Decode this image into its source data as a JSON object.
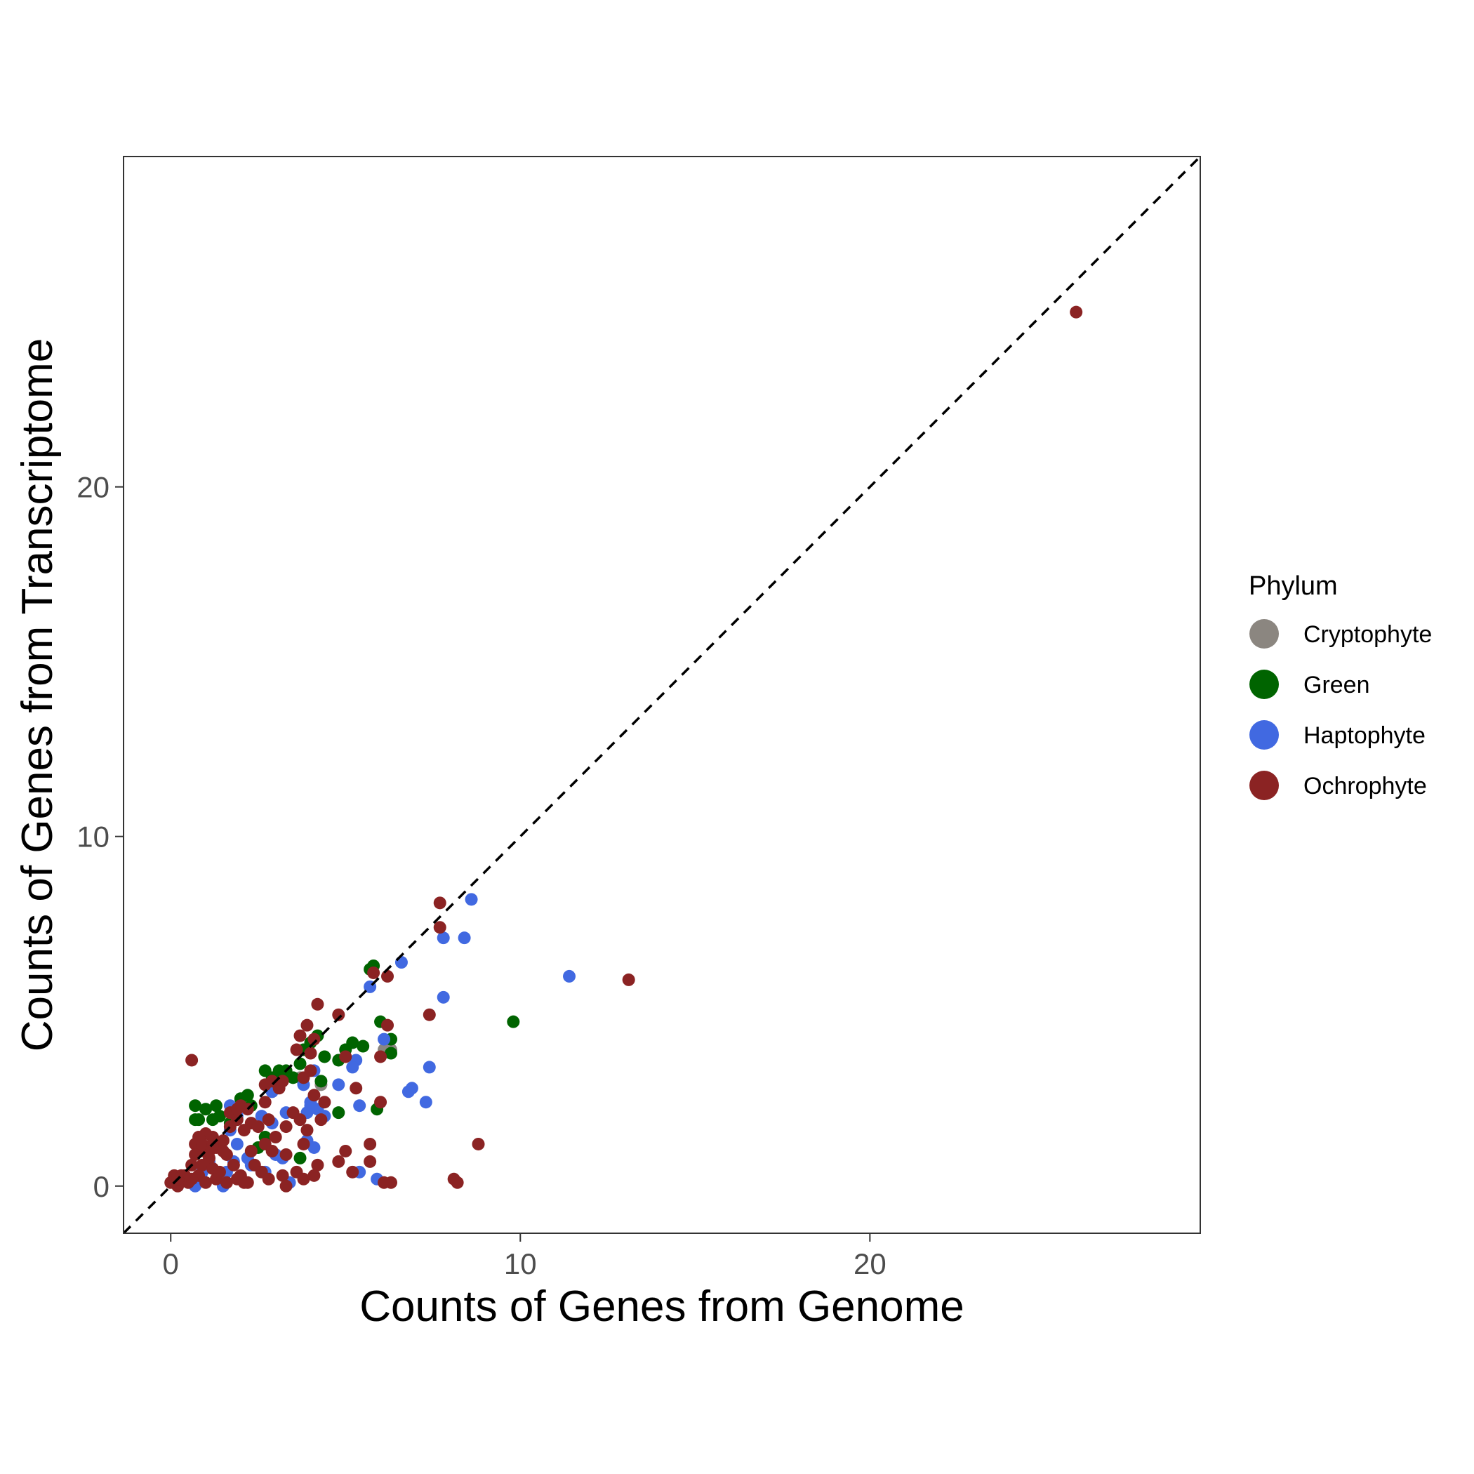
{
  "chart_data": {
    "type": "scatter",
    "title": "",
    "xlabel": "Counts of Genes from Genome",
    "ylabel": "Counts of Genes from Transcriptome",
    "xlim": [
      -1.35,
      29.45
    ],
    "ylim": [
      -1.35,
      29.45
    ],
    "xticks": [
      0,
      10,
      20
    ],
    "yticks": [
      0,
      10,
      20
    ],
    "grid": false,
    "reference_line": {
      "type": "identity",
      "style": "dashed",
      "color": "#000000"
    },
    "legend": {
      "title": "Phylum",
      "position": "right",
      "entries": [
        "Cryptophyte",
        "Green",
        "Haptophyte",
        "Ochrophyte"
      ]
    },
    "colors": {
      "Cryptophyte": "#8b8680",
      "Green": "#006400",
      "Haptophyte": "#4169e1",
      "Ochrophyte": "#8b2323"
    },
    "series": [
      {
        "name": "Cryptophyte",
        "points": [
          [
            3.7,
            3.1
          ],
          [
            4.3,
            2.9
          ],
          [
            6.1,
            3.9
          ],
          [
            6.3,
            3.9
          ],
          [
            2.9,
            2.7
          ]
        ]
      },
      {
        "name": "Green",
        "points": [
          [
            5.8,
            6.3
          ],
          [
            5.7,
            6.2
          ],
          [
            6.0,
            4.7
          ],
          [
            6.3,
            4.2
          ],
          [
            6.3,
            3.8
          ],
          [
            5.2,
            4.1
          ],
          [
            5.5,
            4.0
          ],
          [
            5.0,
            3.9
          ],
          [
            4.2,
            4.3
          ],
          [
            4.0,
            4.1
          ],
          [
            3.8,
            3.9
          ],
          [
            4.4,
            3.7
          ],
          [
            4.8,
            3.6
          ],
          [
            3.7,
            3.5
          ],
          [
            3.1,
            3.3
          ],
          [
            3.3,
            3.3
          ],
          [
            2.7,
            3.3
          ],
          [
            2.9,
            3.1
          ],
          [
            4.3,
            3.0
          ],
          [
            4.8,
            2.1
          ],
          [
            5.9,
            2.2
          ],
          [
            2.2,
            2.6
          ],
          [
            2.0,
            2.5
          ],
          [
            2.3,
            2.3
          ],
          [
            1.3,
            2.3
          ],
          [
            0.7,
            2.3
          ],
          [
            0.7,
            1.9
          ],
          [
            0.8,
            1.9
          ],
          [
            1.4,
            2.0
          ],
          [
            1.0,
            2.2
          ],
          [
            2.7,
            1.4
          ],
          [
            2.5,
            1.1
          ],
          [
            3.7,
            0.8
          ],
          [
            9.8,
            4.7
          ],
          [
            1.7,
            1.8
          ],
          [
            1.2,
            1.9
          ],
          [
            3.5,
            3.1
          ]
        ]
      },
      {
        "name": "Haptophyte",
        "points": [
          [
            8.6,
            8.2
          ],
          [
            7.8,
            7.1
          ],
          [
            8.4,
            7.1
          ],
          [
            6.6,
            6.4
          ],
          [
            5.7,
            5.7
          ],
          [
            11.4,
            6.0
          ],
          [
            7.8,
            5.4
          ],
          [
            6.1,
            4.2
          ],
          [
            5.3,
            3.6
          ],
          [
            5.2,
            3.4
          ],
          [
            7.4,
            3.4
          ],
          [
            4.8,
            2.9
          ],
          [
            6.8,
            2.7
          ],
          [
            6.9,
            2.8
          ],
          [
            7.3,
            2.4
          ],
          [
            5.4,
            2.3
          ],
          [
            4.0,
            2.3
          ],
          [
            4.2,
            2.2
          ],
          [
            3.9,
            2.1
          ],
          [
            4.4,
            2.0
          ],
          [
            3.8,
            2.9
          ],
          [
            4.1,
            3.3
          ],
          [
            3.3,
            2.1
          ],
          [
            2.9,
            2.7
          ],
          [
            2.6,
            2.0
          ],
          [
            2.9,
            1.8
          ],
          [
            1.7,
            2.3
          ],
          [
            1.9,
            2.0
          ],
          [
            3.9,
            1.3
          ],
          [
            4.1,
            1.1
          ],
          [
            3.2,
            0.8
          ],
          [
            3.0,
            0.9
          ],
          [
            2.7,
            0.4
          ],
          [
            2.2,
            0.8
          ],
          [
            2.3,
            0.6
          ],
          [
            1.8,
            0.7
          ],
          [
            1.6,
            0.4
          ],
          [
            1.4,
            0.2
          ],
          [
            1.5,
            0.0
          ],
          [
            0.9,
            0.4
          ],
          [
            0.6,
            0.1
          ],
          [
            0.7,
            0.0
          ],
          [
            1.9,
            1.2
          ],
          [
            1.7,
            1.6
          ],
          [
            5.4,
            0.4
          ],
          [
            5.9,
            0.2
          ],
          [
            3.4,
            0.1
          ],
          [
            4.0,
            2.4
          ],
          [
            1.1,
            0.7
          ]
        ]
      },
      {
        "name": "Ochrophyte",
        "points": [
          [
            25.9,
            25.0
          ],
          [
            7.7,
            8.1
          ],
          [
            7.7,
            7.4
          ],
          [
            6.2,
            6.0
          ],
          [
            5.8,
            6.1
          ],
          [
            13.1,
            5.9
          ],
          [
            4.2,
            5.2
          ],
          [
            4.8,
            4.9
          ],
          [
            7.4,
            4.9
          ],
          [
            6.2,
            4.6
          ],
          [
            3.9,
            4.6
          ],
          [
            3.7,
            4.3
          ],
          [
            4.1,
            4.2
          ],
          [
            3.6,
            3.9
          ],
          [
            4.0,
            3.8
          ],
          [
            5.0,
            3.7
          ],
          [
            6.0,
            3.7
          ],
          [
            0.6,
            3.6
          ],
          [
            3.8,
            3.1
          ],
          [
            4.0,
            3.3
          ],
          [
            3.2,
            3.0
          ],
          [
            2.9,
            3.0
          ],
          [
            2.7,
            2.9
          ],
          [
            3.1,
            2.8
          ],
          [
            5.3,
            2.8
          ],
          [
            4.4,
            2.4
          ],
          [
            6.0,
            2.4
          ],
          [
            2.7,
            2.4
          ],
          [
            2.0,
            2.3
          ],
          [
            2.2,
            2.2
          ],
          [
            1.7,
            2.1
          ],
          [
            1.9,
            1.9
          ],
          [
            2.3,
            1.8
          ],
          [
            2.1,
            1.6
          ],
          [
            2.5,
            1.7
          ],
          [
            2.8,
            1.9
          ],
          [
            3.3,
            1.7
          ],
          [
            3.5,
            2.1
          ],
          [
            3.7,
            1.9
          ],
          [
            4.3,
            1.9
          ],
          [
            3.9,
            1.6
          ],
          [
            4.1,
            2.6
          ],
          [
            3.0,
            1.4
          ],
          [
            2.7,
            1.2
          ],
          [
            2.9,
            1.0
          ],
          [
            3.3,
            0.9
          ],
          [
            3.8,
            1.2
          ],
          [
            4.2,
            0.6
          ],
          [
            5.0,
            1.0
          ],
          [
            5.7,
            1.2
          ],
          [
            5.7,
            0.7
          ],
          [
            4.8,
            0.7
          ],
          [
            5.2,
            0.4
          ],
          [
            6.1,
            0.1
          ],
          [
            6.3,
            0.1
          ],
          [
            8.1,
            0.2
          ],
          [
            8.2,
            0.1
          ],
          [
            8.8,
            1.2
          ],
          [
            3.6,
            0.4
          ],
          [
            3.8,
            0.2
          ],
          [
            4.1,
            0.3
          ],
          [
            2.4,
            0.6
          ],
          [
            2.6,
            0.4
          ],
          [
            2.8,
            0.2
          ],
          [
            3.2,
            0.3
          ],
          [
            3.3,
            0.0
          ],
          [
            2.2,
            0.1
          ],
          [
            2.0,
            0.3
          ],
          [
            2.3,
            1.0
          ],
          [
            1.8,
            0.6
          ],
          [
            1.6,
            0.9
          ],
          [
            1.5,
            1.3
          ],
          [
            1.3,
            1.1
          ],
          [
            1.2,
            1.4
          ],
          [
            1.0,
            1.5
          ],
          [
            0.8,
            1.4
          ],
          [
            0.7,
            1.2
          ],
          [
            0.9,
            1.0
          ],
          [
            1.1,
            0.8
          ],
          [
            0.7,
            0.9
          ],
          [
            0.9,
            0.6
          ],
          [
            1.2,
            0.5
          ],
          [
            1.3,
            0.2
          ],
          [
            1.4,
            0.4
          ],
          [
            0.8,
            0.3
          ],
          [
            0.6,
            0.2
          ],
          [
            0.5,
            0.1
          ],
          [
            0.3,
            0.3
          ],
          [
            0.2,
            0.0
          ],
          [
            0.1,
            0.3
          ],
          [
            0.0,
            0.1
          ],
          [
            0.4,
            0.3
          ],
          [
            1.0,
            0.1
          ],
          [
            1.6,
            0.1
          ],
          [
            1.9,
            0.2
          ],
          [
            2.1,
            0.1
          ],
          [
            1.7,
            1.7
          ],
          [
            1.9,
            2.2
          ],
          [
            1.1,
            1.0
          ],
          [
            0.9,
            1.2
          ],
          [
            1.5,
            1.0
          ],
          [
            0.6,
            0.6
          ],
          [
            0.2,
            0.2
          ],
          [
            1.2,
            1.2
          ]
        ]
      }
    ]
  }
}
